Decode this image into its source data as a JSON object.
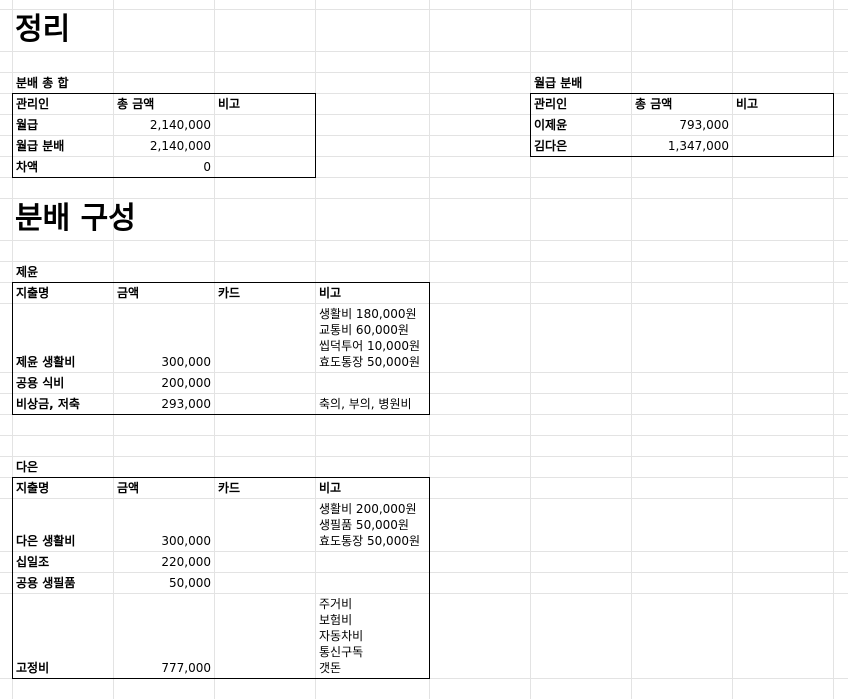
{
  "summary": {
    "title": "정리",
    "total": {
      "caption": "분배 총 합",
      "headers": [
        "관리인",
        "총 금액",
        "비고"
      ],
      "rows": [
        {
          "name": "월급",
          "amount": "2,140,000",
          "note": ""
        },
        {
          "name": "월급 분배",
          "amount": "2,140,000",
          "note": ""
        },
        {
          "name": "차액",
          "amount": "0",
          "note": ""
        }
      ]
    },
    "salary": {
      "caption": "월급 분배",
      "headers": [
        "관리인",
        "총 금액",
        "비고"
      ],
      "rows": [
        {
          "name": "이제윤",
          "amount": "793,000",
          "note": ""
        },
        {
          "name": "김다은",
          "amount": "1,347,000",
          "note": ""
        }
      ]
    }
  },
  "composition": {
    "title": "분배 구성",
    "jeyun": {
      "caption": "제윤",
      "headers": [
        "지출명",
        "금액",
        "카드",
        "비고"
      ],
      "rows": [
        {
          "name": "제윤 생활비",
          "amount": "300,000",
          "card": "",
          "note": "생활비 180,000원\n교통비 60,000원\n씹덕투어 10,000원\n효도통장 50,000원"
        },
        {
          "name": "공용 식비",
          "amount": "200,000",
          "card": "",
          "note": ""
        },
        {
          "name": "비상금, 저축",
          "amount": "293,000",
          "card": "",
          "note": "축의, 부의, 병원비"
        }
      ]
    },
    "daeun": {
      "caption": "다은",
      "headers": [
        "지출명",
        "금액",
        "카드",
        "비고"
      ],
      "rows": [
        {
          "name": "다은 생활비",
          "amount": "300,000",
          "card": "",
          "note": "생활비 200,000원\n생필품 50,000원\n효도통장 50,000원"
        },
        {
          "name": "십일조",
          "amount": "220,000",
          "card": "",
          "note": ""
        },
        {
          "name": "공용 생필품",
          "amount": "50,000",
          "card": "",
          "note": ""
        },
        {
          "name": "고정비",
          "amount": "777,000",
          "card": "",
          "note": "주거비\n보험비\n자동차비\n통신구독\n갯돈"
        }
      ]
    }
  }
}
